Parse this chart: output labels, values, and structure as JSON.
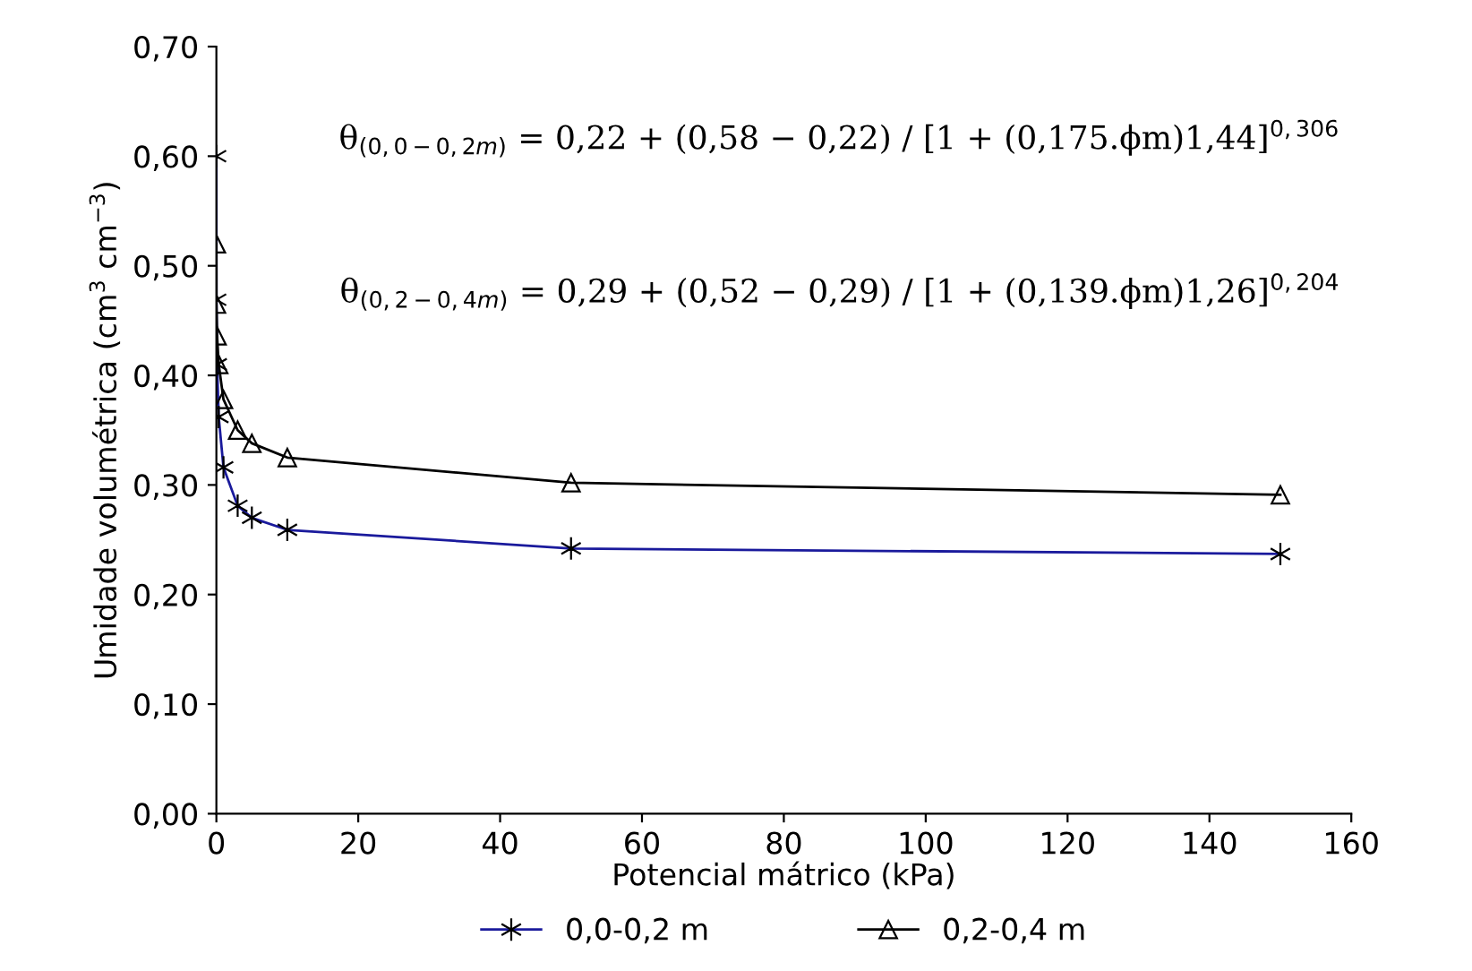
{
  "chart_data": {
    "type": "line",
    "xlabel": "Potencial mátrico (kPa)",
    "ylabel": "Umidade volumétrica (cm$^{3}$ cm$^{−3}$)",
    "x": [
      0,
      0.01,
      0.1,
      0.33,
      1,
      3,
      5,
      10,
      50,
      150
    ],
    "series": [
      {
        "name": "0,0-0,2 m",
        "color": "#1a1a9c",
        "marker": "cross",
        "values": [
          0.6,
          0.469,
          0.41,
          0.362,
          0.316,
          0.281,
          0.27,
          0.259,
          0.242,
          0.237
        ]
      },
      {
        "name": "0,2-0,4 m",
        "color": "#000000",
        "marker": "triangle",
        "values": [
          0.52,
          0.465,
          0.436,
          0.41,
          0.378,
          0.35,
          0.338,
          0.325,
          0.302,
          0.291
        ]
      }
    ],
    "xlim": [
      0,
      160
    ],
    "xticks": [
      0,
      20,
      40,
      60,
      80,
      100,
      120,
      140,
      160
    ],
    "ylim": [
      0,
      0.7
    ],
    "yticks": [
      {
        "value": 0,
        "label": "0,00"
      },
      {
        "value": 0.1,
        "label": "0,10"
      },
      {
        "value": 0.2,
        "label": "0,20"
      },
      {
        "value": 0.3,
        "label": "0,30"
      },
      {
        "value": 0.4,
        "label": "0,40"
      },
      {
        "value": 0.5,
        "label": "0,50"
      },
      {
        "value": 0.6,
        "label": "0,60"
      },
      {
        "value": 0.7,
        "label": "0,70"
      }
    ],
    "grid": false,
    "legend": "bottom",
    "line_style": "solid",
    "annotations": [
      "θ$_{(0,0−0,2m)}$ = 0,22 + (0,58 − 0,22) / [1 + (0,175.ϕm)1,44]$^{0,306}$",
      "θ$_{(0,2−0,4m)}$ = 0,29 + (0,52 − 0,29) / [1 + (0,139.ϕm)1,26]$^{0,204}$"
    ]
  }
}
